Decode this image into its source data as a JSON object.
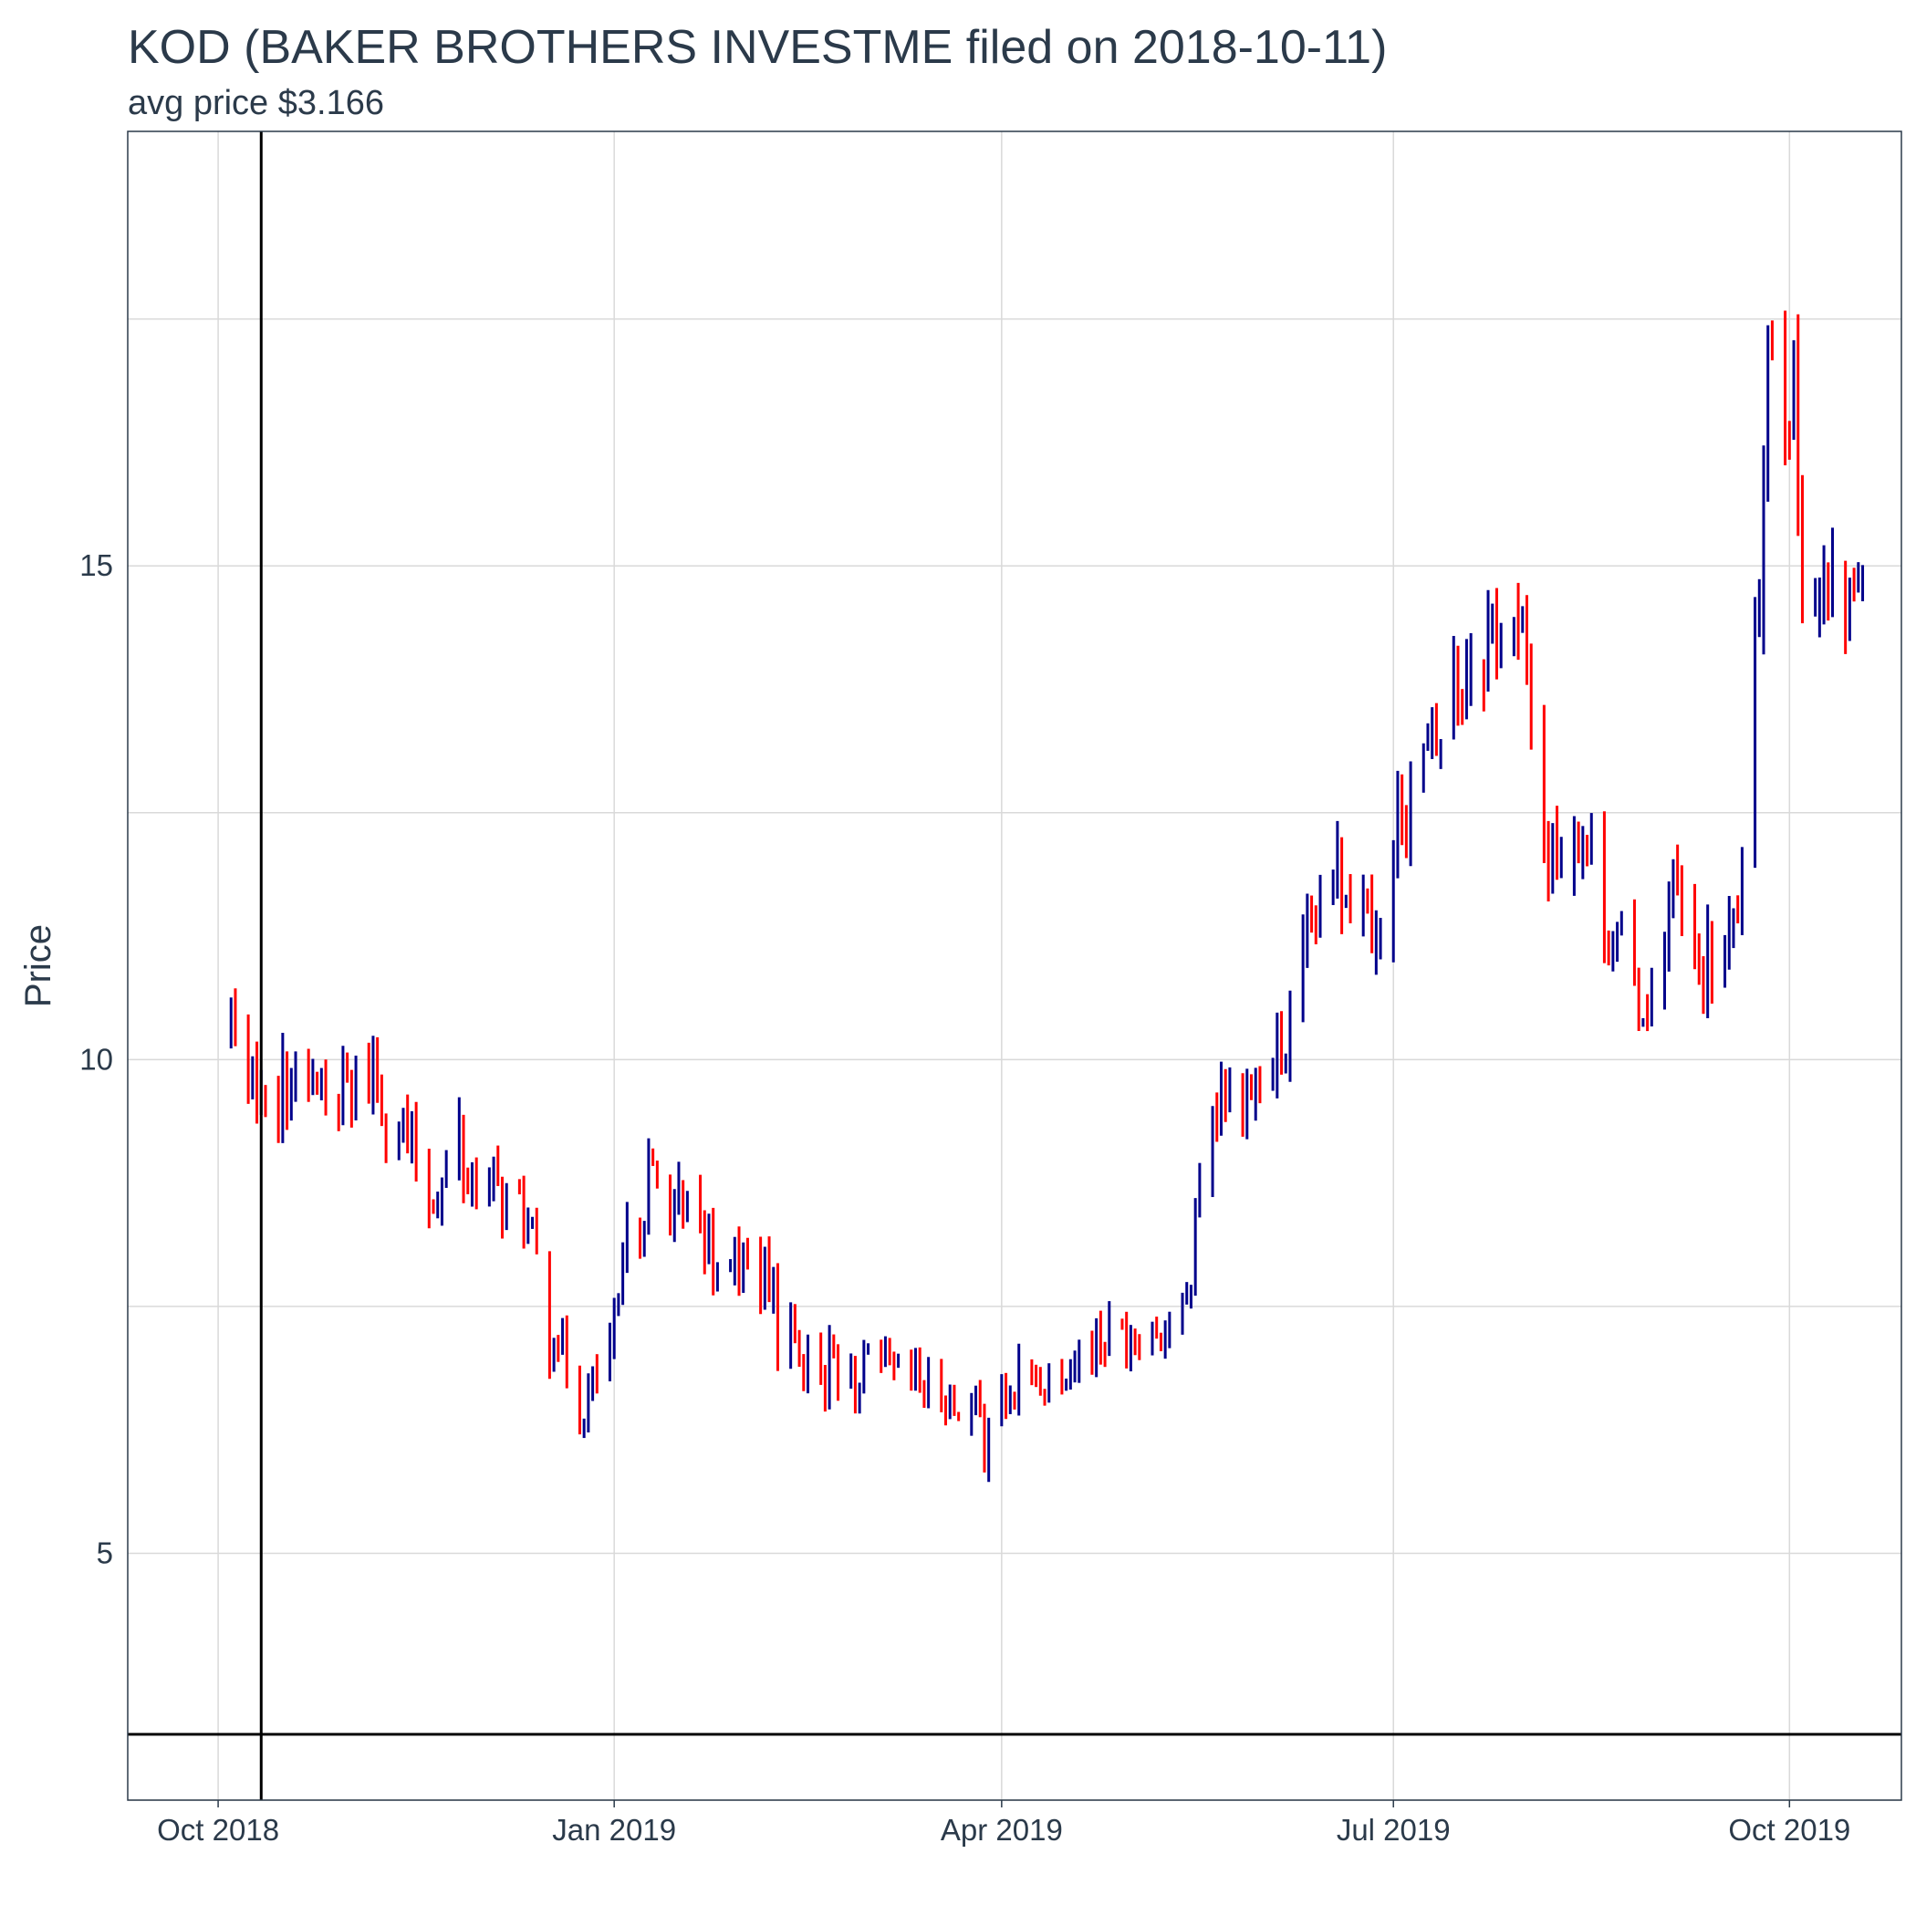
{
  "chart_data": {
    "type": "ohlc",
    "title": "KOD (BAKER BROTHERS INVESTME filed on 2018-10-11)",
    "subtitle": "avg price $3.166",
    "ylabel": "Price",
    "xlabel": "",
    "x_axis": {
      "type": "date",
      "range": [
        "2018-09-10",
        "2019-10-27"
      ],
      "ticks": [
        {
          "date": "2018-10-01",
          "label": "Oct 2018"
        },
        {
          "date": "2019-01-01",
          "label": "Jan 2019"
        },
        {
          "date": "2019-04-01",
          "label": "Apr 2019"
        },
        {
          "date": "2019-07-01",
          "label": "Jul 2019"
        },
        {
          "date": "2019-10-01",
          "label": "Oct 2019"
        }
      ]
    },
    "y_axis": {
      "range": [
        2.5,
        19.4
      ],
      "ticks": [
        5,
        10,
        15
      ],
      "tick_labels": [
        "5",
        "10",
        "15"
      ]
    },
    "grid": true,
    "colors": {
      "up": "#00008b",
      "down": "#ff0000",
      "reference": "#000000",
      "grid": "#d9d9d9",
      "text": "#2b3a4a"
    },
    "reference_lines": {
      "filing_date": "2018-10-11",
      "avg_price": 3.166
    },
    "anchors": [
      [
        "2018-10-04",
        10.4,
        0
      ],
      [
        "2018-10-08",
        9.9,
        -0.3
      ],
      [
        "2018-10-15",
        9.8,
        -0.2
      ],
      [
        "2018-10-29",
        9.7,
        -0.3
      ],
      [
        "2018-11-05",
        9.8,
        0.2
      ],
      [
        "2018-11-13",
        9.3,
        -0.3
      ],
      [
        "2018-11-19",
        8.6,
        -0.3
      ],
      [
        "2018-11-26",
        8.9,
        0.4
      ],
      [
        "2018-12-03",
        8.7,
        0
      ],
      [
        "2018-12-10",
        8.5,
        -0.2
      ],
      [
        "2018-12-17",
        7.5,
        -0.4
      ],
      [
        "2018-12-24",
        6.4,
        -0.4
      ],
      [
        "2019-01-02",
        7.3,
        0.4
      ],
      [
        "2019-01-09",
        8.8,
        0.6
      ],
      [
        "2019-01-16",
        8.5,
        -0.2
      ],
      [
        "2019-01-25",
        8.1,
        -0.3
      ],
      [
        "2019-02-05",
        7.8,
        -0.3
      ],
      [
        "2019-02-14",
        7.0,
        -0.3
      ],
      [
        "2019-02-28",
        6.9,
        0
      ],
      [
        "2019-03-14",
        6.7,
        -0.1
      ],
      [
        "2019-03-28",
        6.4,
        -0.3
      ],
      [
        "2019-04-04",
        6.6,
        0.2
      ],
      [
        "2019-04-15",
        6.9,
        0.1
      ],
      [
        "2019-04-25",
        7.2,
        0.1
      ],
      [
        "2019-05-07",
        7.3,
        0
      ],
      [
        "2019-05-14",
        7.4,
        0
      ],
      [
        "2019-05-17",
        8.8,
        0.5
      ],
      [
        "2019-05-24",
        9.7,
        0.4
      ],
      [
        "2019-05-31",
        9.7,
        0
      ],
      [
        "2019-06-07",
        10.2,
        0.2
      ],
      [
        "2019-06-12",
        11.3,
        0.5
      ],
      [
        "2019-06-19",
        11.9,
        0.3
      ],
      [
        "2019-06-28",
        11.4,
        -0.2
      ],
      [
        "2019-07-03",
        12.6,
        0.4
      ],
      [
        "2019-07-12",
        13.3,
        0.3
      ],
      [
        "2019-07-19",
        14.2,
        0.4
      ],
      [
        "2019-07-26",
        14.5,
        0.2
      ],
      [
        "2019-08-01",
        14.0,
        -0.3
      ],
      [
        "2019-08-06",
        12.0,
        -0.5
      ],
      [
        "2019-08-13",
        12.5,
        0.3
      ],
      [
        "2019-08-20",
        11.4,
        -0.4
      ],
      [
        "2019-08-28",
        10.5,
        -0.3
      ],
      [
        "2019-09-04",
        11.7,
        0.4
      ],
      [
        "2019-09-09",
        10.9,
        -0.3
      ],
      [
        "2019-09-16",
        11.0,
        0
      ],
      [
        "2019-09-20",
        11.8,
        0.4
      ],
      [
        "2019-09-23",
        13.9,
        0.6
      ],
      [
        "2019-09-27",
        17.5,
        0.6
      ],
      [
        "2019-10-02",
        16.6,
        -0.3
      ],
      [
        "2019-10-04",
        15.0,
        -0.5
      ],
      [
        "2019-10-10",
        14.5,
        -0.2
      ],
      [
        "2019-10-15",
        14.6,
        0.2
      ],
      [
        "2019-10-18",
        15.4,
        0.4
      ],
      [
        "2019-10-21",
        17.8,
        0.5
      ]
    ]
  }
}
